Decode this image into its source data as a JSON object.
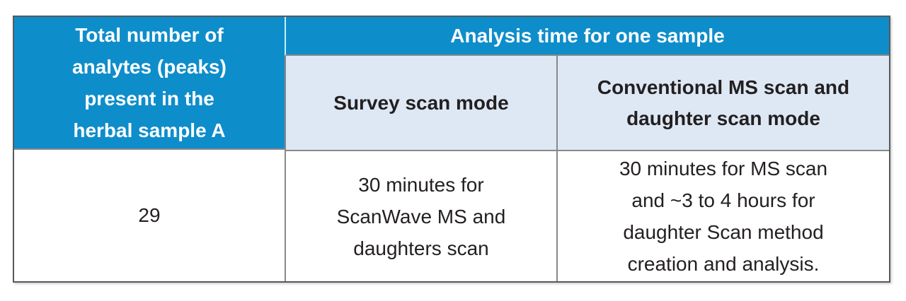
{
  "table": {
    "header": {
      "analytes_label": "Total number of\nanalytes (peaks)\npresent in the\nherbal sample A",
      "analysis_time_label": "Analysis time for one sample",
      "survey_mode_label": "Survey scan mode",
      "conventional_mode_label": "Conventional MS scan and\ndaughter scan mode"
    },
    "row": {
      "analytes_count": "29",
      "survey_time": "30 minutes for\nScanWave MS and\ndaughters scan",
      "conventional_time": "30 minutes for MS scan\nand ~3 to 4 hours for\ndaughter Scan method\ncreation and analysis."
    },
    "colors": {
      "header_blue": "#0E8DCB",
      "subheader_light_blue": "#DDE8F4",
      "border_outer": "#58595B",
      "border_inner": "#87888A",
      "header_divider_cyan": "#C9EEF6",
      "text_light": "#FFFFFF",
      "text_dark": "#231F20"
    }
  }
}
